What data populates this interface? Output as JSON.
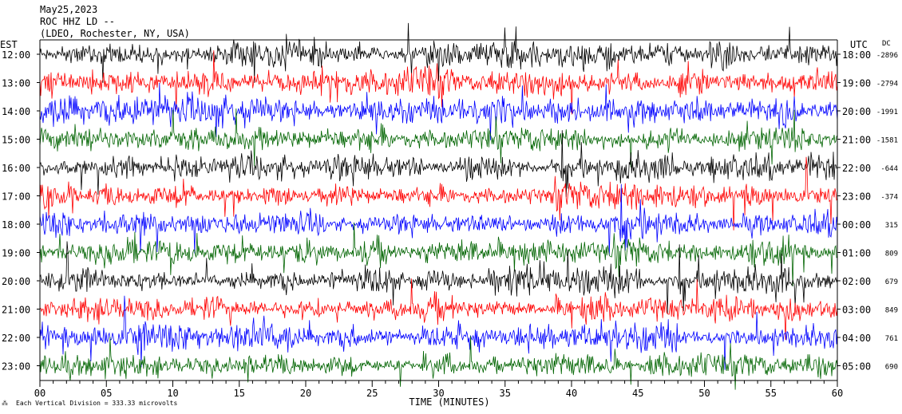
{
  "chart_data": {
    "type": "line",
    "title_lines": [
      "May25,2023",
      "ROC HHZ LD --",
      "(LDEO, Rochester, NY, USA)"
    ],
    "left_axis_label": "EST",
    "right_axis_label": "UTC",
    "dc_label": "DC",
    "xlabel": "TIME (MINUTES)",
    "xlim": [
      0,
      60
    ],
    "x_ticks": [
      "00",
      "05",
      "10",
      "15",
      "20",
      "25",
      "30",
      "35",
      "40",
      "45",
      "50",
      "55",
      "60"
    ],
    "scale_note": "Each Vertical Division = 333.33 microvolts",
    "trace_colors": [
      "#000000",
      "#ff0000",
      "#0000ff",
      "#006400"
    ],
    "rows": [
      {
        "est": "12:00",
        "utc": "18:00",
        "dc": "-2896"
      },
      {
        "est": "13:00",
        "utc": "19:00",
        "dc": "-2794"
      },
      {
        "est": "14:00",
        "utc": "20:00",
        "dc": "-1991"
      },
      {
        "est": "15:00",
        "utc": "21:00",
        "dc": "-1581"
      },
      {
        "est": "16:00",
        "utc": "22:00",
        "dc": "-644"
      },
      {
        "est": "17:00",
        "utc": "23:00",
        "dc": "-374"
      },
      {
        "est": "18:00",
        "utc": "00:00",
        "dc": "315"
      },
      {
        "est": "19:00",
        "utc": "01:00",
        "dc": "809"
      },
      {
        "est": "20:00",
        "utc": "02:00",
        "dc": "679"
      },
      {
        "est": "21:00",
        "utc": "03:00",
        "dc": "849"
      },
      {
        "est": "22:00",
        "utc": "04:00",
        "dc": "761"
      },
      {
        "est": "23:00",
        "utc": "05:00",
        "dc": "690"
      }
    ]
  }
}
